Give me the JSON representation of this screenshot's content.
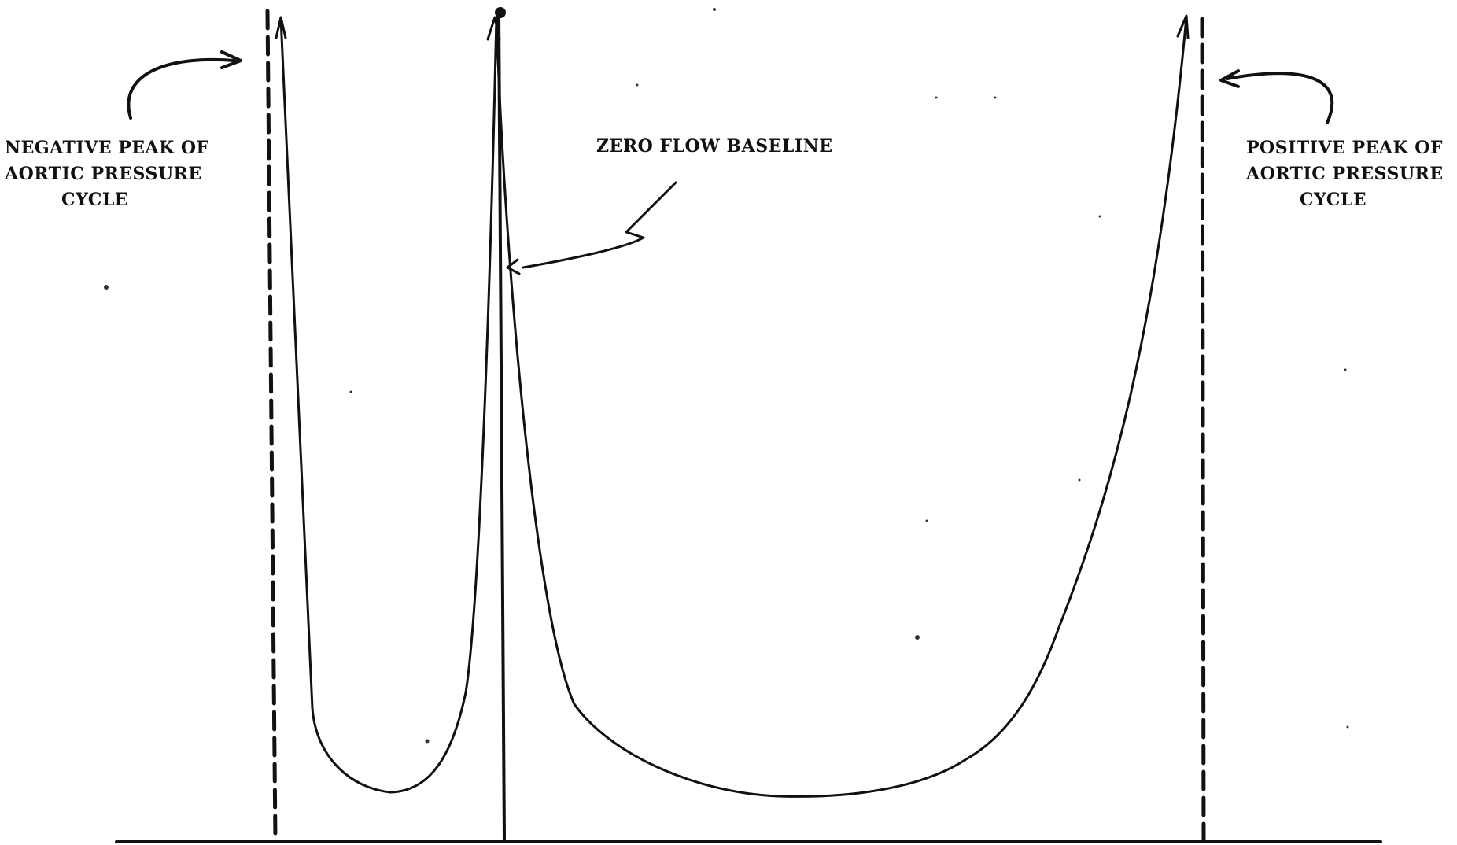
{
  "labels": {
    "negative_peak": {
      "line1": "NEGATIVE PEAK OF",
      "line2": "AORTIC  PRESSURE",
      "line3": "CYCLE"
    },
    "zero_flow": "ZERO FLOW BASELINE",
    "positive_peak": {
      "line1": "POSITIVE PEAK OF",
      "line2": "AORTIC  PRESSURE",
      "line3": "CYCLE"
    }
  },
  "colors": {
    "ink": "#111111",
    "paper": "#ffffff"
  }
}
